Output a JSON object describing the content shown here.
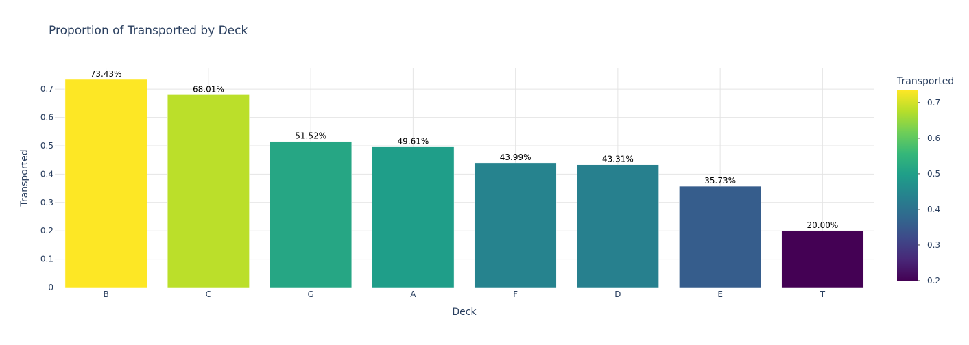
{
  "chart_data": {
    "type": "bar",
    "title": "Proportion of Transported by Deck",
    "xlabel": "Deck",
    "ylabel": "Transported",
    "categories": [
      "B",
      "C",
      "G",
      "A",
      "F",
      "D",
      "E",
      "T"
    ],
    "values": [
      0.7343,
      0.6801,
      0.5152,
      0.4961,
      0.4399,
      0.4331,
      0.3573,
      0.2
    ],
    "bar_labels": [
      "73.43%",
      "68.01%",
      "51.52%",
      "49.61%",
      "43.99%",
      "43.31%",
      "35.73%",
      "20.00%"
    ],
    "ylim": [
      0,
      0.7729
    ],
    "yticks": [
      0,
      0.1,
      0.2,
      0.3,
      0.4,
      0.5,
      0.6,
      0.7
    ],
    "ytick_labels": [
      "0",
      "0.1",
      "0.2",
      "0.3",
      "0.4",
      "0.5",
      "0.6",
      "0.7"
    ],
    "grid": true,
    "colorbar": {
      "title": "Transported",
      "range": [
        0.2,
        0.7343
      ],
      "ticks": [
        0.2,
        0.3,
        0.4,
        0.5,
        0.6,
        0.7
      ],
      "tick_labels": [
        "0.2",
        "0.3",
        "0.4",
        "0.5",
        "0.6",
        "0.7"
      ],
      "colorscale": "viridis"
    }
  }
}
